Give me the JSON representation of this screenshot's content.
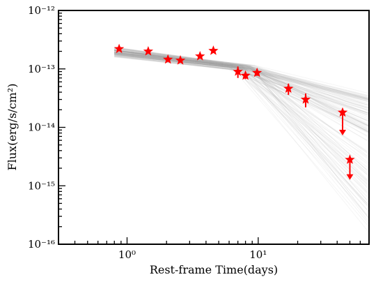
{
  "chart_data": {
    "type": "scatter",
    "x_scale": "log",
    "y_scale": "log",
    "xlabel": "Rest-frame Time(days)",
    "ylabel": "Flux(erg/s/cm²)",
    "xlim": [
      0.3,
      70
    ],
    "ylim": [
      1e-16,
      1e-12
    ],
    "x_tick_labels": [
      "10⁰",
      "10¹"
    ],
    "y_tick_labels": [
      "10⁻¹⁶",
      "10⁻¹⁵",
      "10⁻¹⁴",
      "10⁻¹³",
      "10⁻¹²"
    ],
    "grid": false,
    "legend": "none",
    "colors": {
      "points": "#ff0000",
      "model_lines": "#9a9a9a"
    },
    "series": [
      {
        "marker": "star",
        "points": [
          {
            "x": 0.87,
            "y": 2.2e-13,
            "yerr_lo": 0,
            "yerr_hi": 0
          },
          {
            "x": 1.45,
            "y": 2e-13,
            "yerr_lo": 0,
            "yerr_hi": 0
          },
          {
            "x": 2.05,
            "y": 1.45e-13,
            "yerr_lo": 0,
            "yerr_hi": 0
          },
          {
            "x": 2.55,
            "y": 1.4e-13,
            "yerr_lo": 0,
            "yerr_hi": 0
          },
          {
            "x": 3.6,
            "y": 1.65e-13,
            "yerr_lo": 0,
            "yerr_hi": 0
          },
          {
            "x": 4.55,
            "y": 2.05e-13,
            "yerr_lo": 0,
            "yerr_hi": 0
          },
          {
            "x": 7.0,
            "y": 9e-14,
            "yerr_lo": 2e-14,
            "yerr_hi": 2e-14
          },
          {
            "x": 8.0,
            "y": 7.7e-14,
            "yerr_lo": 1e-14,
            "yerr_hi": 1e-14
          },
          {
            "x": 9.8,
            "y": 8.6e-14,
            "yerr_lo": 1e-14,
            "yerr_hi": 1e-14
          },
          {
            "x": 17.0,
            "y": 4.6e-14,
            "yerr_lo": 1e-14,
            "yerr_hi": 1e-14
          },
          {
            "x": 23.0,
            "y": 3e-14,
            "yerr_lo": 8e-15,
            "yerr_hi": 8e-15
          }
        ]
      },
      {
        "marker": "star-upper-limit",
        "points": [
          {
            "x": 44.0,
            "y": 1.8e-14,
            "limit_to": 7.5e-15
          },
          {
            "x": 50.0,
            "y": 2.8e-15,
            "limit_to": 1.3e-15
          }
        ]
      }
    ],
    "model": {
      "description_kind": "broken power-law samples",
      "break_time": 7.5,
      "flux_at_break": 1.05e-13,
      "early_slope_range": [
        -0.32,
        -0.22
      ],
      "late_slope_range": [
        -3.0,
        -0.55
      ],
      "n_samples": 140
    }
  }
}
